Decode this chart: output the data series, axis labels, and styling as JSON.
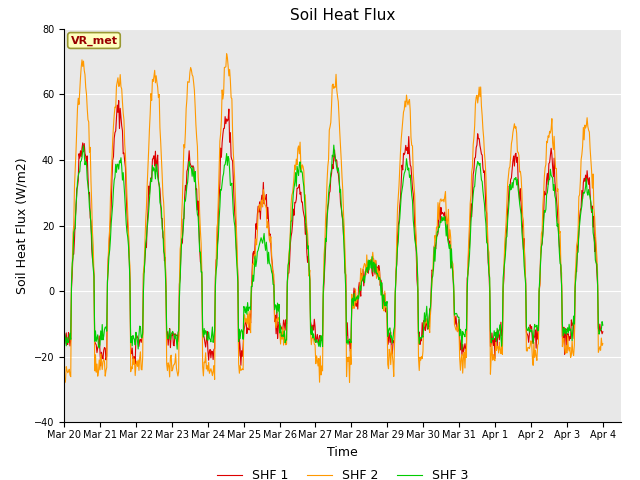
{
  "title": "Soil Heat Flux",
  "xlabel": "Time",
  "ylabel": "Soil Heat Flux (W/m2)",
  "ylim": [
    -40,
    80
  ],
  "xlim_days": [
    0,
    15.5
  ],
  "colors": {
    "SHF 1": "#dd0000",
    "SHF 2": "#ff9900",
    "SHF 3": "#00cc00"
  },
  "legend_labels": [
    "SHF 1",
    "SHF 2",
    "SHF 3"
  ],
  "annotation_text": "VR_met",
  "bg_color": "#e8e8e8",
  "plot_bg_color": "#d8d8d8",
  "fig_bg_color": "#ffffff",
  "grid_color": "#ffffff",
  "title_fontsize": 11,
  "axis_fontsize": 9,
  "tick_fontsize": 7,
  "legend_fontsize": 9,
  "xtick_labels": [
    "Mar 20",
    "Mar 21",
    "Mar 22",
    "Mar 23",
    "Mar 24",
    "Mar 25",
    "Mar 26",
    "Mar 27",
    "Mar 28",
    "Mar 29",
    "Mar 30",
    "Mar 31",
    "Apr 1",
    "Apr 2",
    "Apr 3",
    "Apr 4"
  ],
  "xtick_positions": [
    0,
    1,
    2,
    3,
    4,
    5,
    6,
    7,
    8,
    9,
    10,
    11,
    12,
    13,
    14,
    15
  ],
  "ytick_positions": [
    -40,
    -20,
    0,
    20,
    40,
    60,
    80
  ],
  "n_days": 15,
  "pts_per_day": 48,
  "day_amplitudes_shf2": [
    70,
    65,
    66,
    66,
    71,
    28,
    43,
    63,
    9,
    60,
    28,
    60,
    50,
    50,
    50
  ],
  "day_amplitudes_shf1": [
    45,
    55,
    40,
    40,
    53,
    30,
    30,
    40,
    8,
    45,
    25,
    46,
    40,
    40,
    35
  ],
  "day_amplitudes_shf3": [
    42,
    40,
    38,
    38,
    40,
    15,
    38,
    42,
    8,
    38,
    22,
    38,
    35,
    35,
    32
  ]
}
